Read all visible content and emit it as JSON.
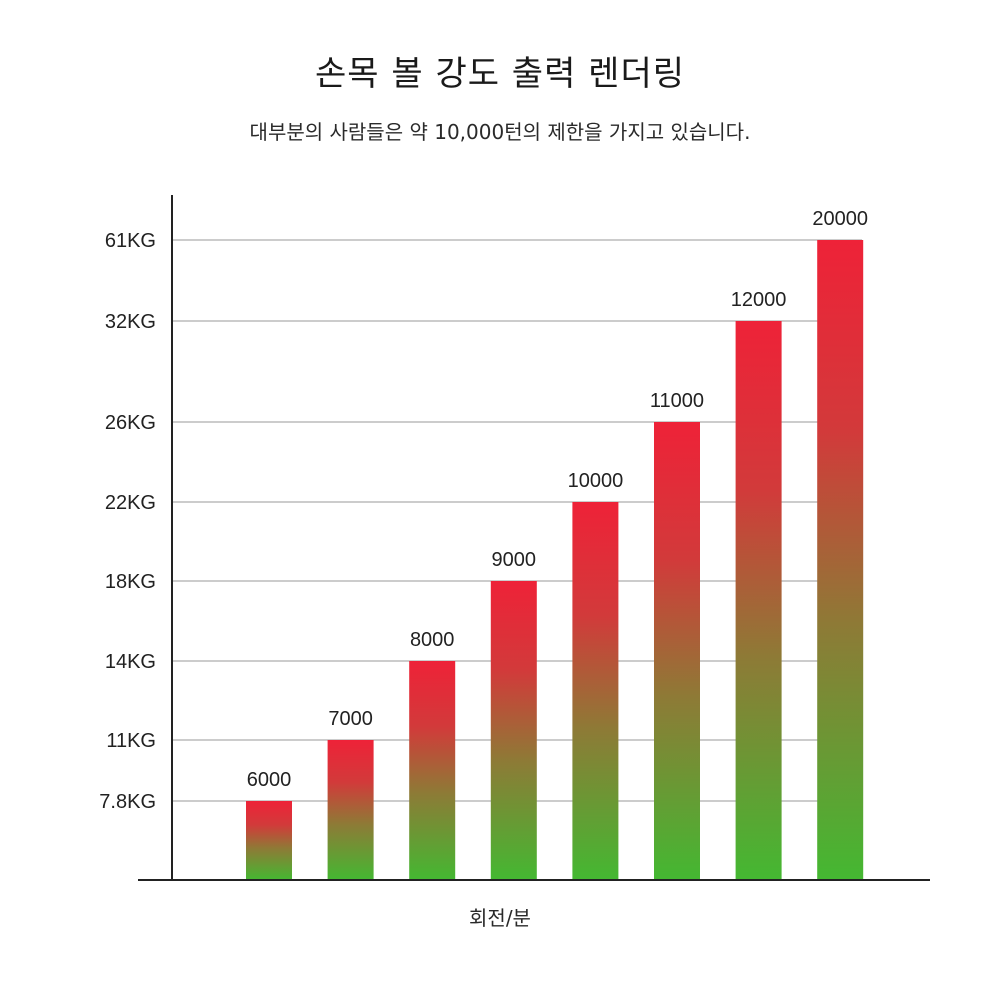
{
  "chart_data": {
    "type": "bar",
    "title": "손목 볼 강도 출력 렌더링",
    "subtitle": "대부분의 사람들은 약 10,000턴의 제한을 가지고 있습니다.",
    "xlabel": "회전/분",
    "ylabel": "",
    "categories": [
      "6000",
      "7000",
      "8000",
      "9000",
      "10000",
      "11000",
      "12000",
      "20000"
    ],
    "values": [
      "7.8KG",
      "11KG",
      "14KG",
      "18KG",
      "22KG",
      "26KG",
      "32KG",
      "61KG"
    ],
    "y_ticks": [
      "7.8KG",
      "11KG",
      "14KG",
      "18KG",
      "22KG",
      "26KG",
      "32KG",
      "61KG"
    ],
    "grid": true,
    "colors": {
      "bar_top": "#ee2238",
      "bar_bottom": "#44b832",
      "gridline": "#999999",
      "axis": "#222222"
    }
  }
}
